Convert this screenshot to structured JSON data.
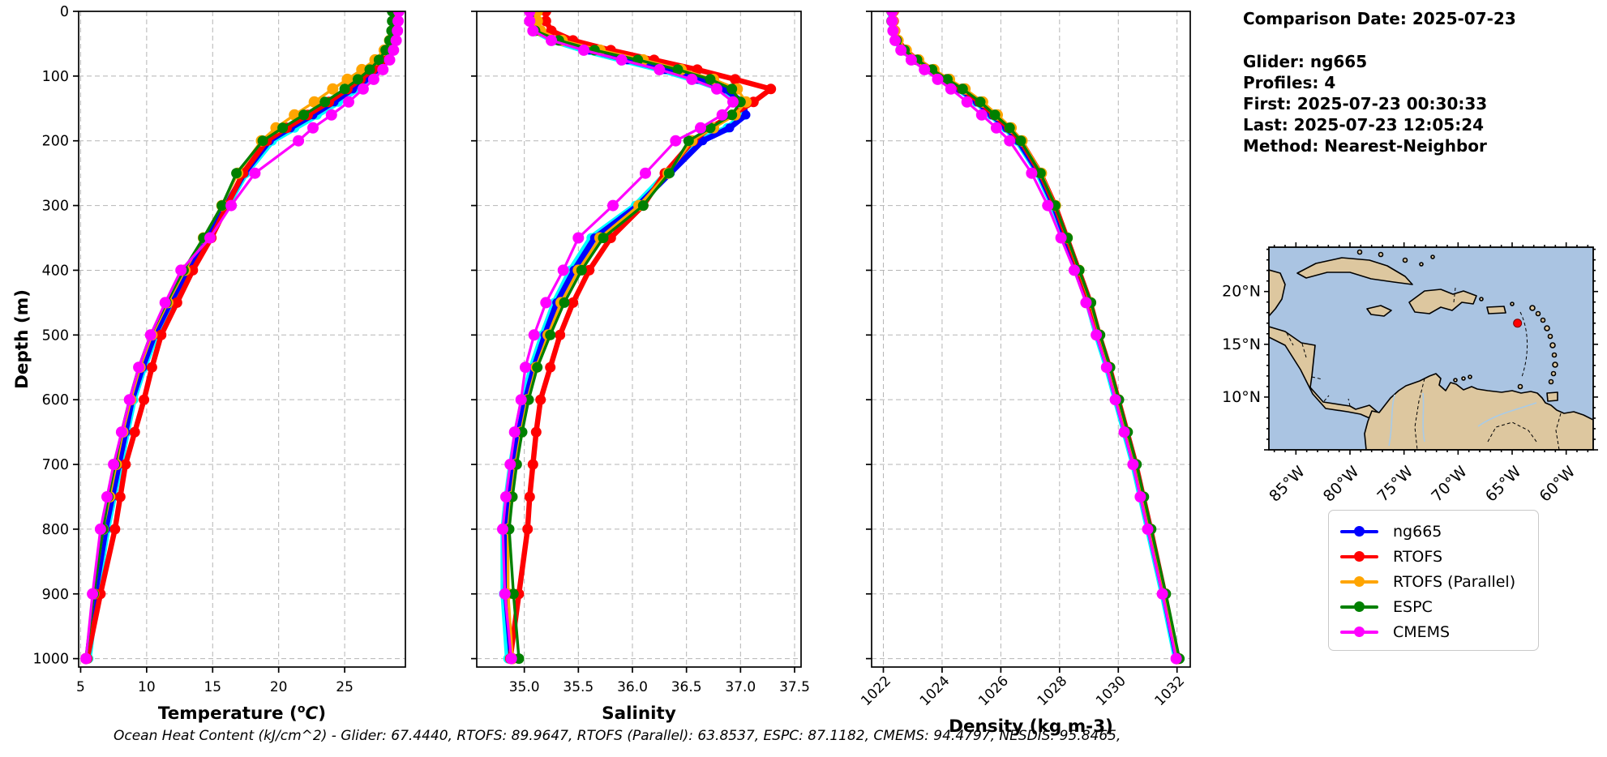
{
  "info_panel": {
    "comparison_date": "Comparison Date: 2025-07-23",
    "glider": "Glider: ng665",
    "profiles": "Profiles: 4",
    "first": "First: 2025-07-23 00:30:33",
    "last": "Last: 2025-07-23 12:05:24",
    "method": "Method: Nearest-Neighbor"
  },
  "legend": {
    "items": [
      {
        "label": "ng665",
        "color": "#0000ff"
      },
      {
        "label": "RTOFS",
        "color": "#ff0000"
      },
      {
        "label": "RTOFS (Parallel)",
        "color": "#ffa500"
      },
      {
        "label": "ESPC",
        "color": "#008000"
      },
      {
        "label": "CMEMS",
        "color": "#ff00ff"
      }
    ]
  },
  "footer": {
    "ohc_text": "Ocean Heat Content (kJ/cm^2) - Glider: 67.4440,  RTOFS: 89.9647,  RTOFS (Parallel): 63.8537,  ESPC: 87.1182,  CMEMS: 94.4797,  NESDIS: 95.8465,"
  },
  "depth_axis": {
    "label": "Depth (m)",
    "ticks": [
      0,
      100,
      200,
      300,
      400,
      500,
      600,
      700,
      800,
      900,
      1000
    ],
    "lim": [
      0,
      1013
    ]
  },
  "series_meta": [
    {
      "name": "glider-raw-profiles",
      "label": "",
      "color": "#00ffff",
      "width": 8,
      "marker_r": 6,
      "in_legend": false
    },
    {
      "name": "ng665",
      "label": "ng665",
      "color": "#0000ff",
      "width": 7,
      "marker_r": 5.5,
      "in_legend": true
    },
    {
      "name": "rtofs",
      "label": "RTOFS",
      "color": "#ff0000",
      "width": 6.5,
      "marker_r": 6.5,
      "in_legend": true
    },
    {
      "name": "rtofs-parallel",
      "label": "RTOFS (Parallel)",
      "color": "#ffa500",
      "width": 3.4,
      "marker_r": 7,
      "in_legend": true
    },
    {
      "name": "espc",
      "label": "ESPC",
      "color": "#008000",
      "width": 3.4,
      "marker_r": 6.5,
      "in_legend": true
    },
    {
      "name": "cmems",
      "label": "CMEMS",
      "color": "#ff00ff",
      "width": 3.2,
      "marker_r": 7,
      "in_legend": true
    }
  ],
  "chart_data": [
    {
      "type": "line",
      "name": "temperature-profile",
      "xlabel_parts": {
        "prefix": "Temperature (",
        "sup": "o",
        "italic": "C",
        "suffix": ")"
      },
      "xlim": [
        4.85,
        29.6
      ],
      "xticks": [
        5,
        10,
        15,
        20,
        25
      ],
      "xtick_labels": [
        "5",
        "10",
        "15",
        "20",
        "25"
      ],
      "rotate_xticklabels": false,
      "show_depth_labels": true,
      "depths": [
        0,
        15,
        30,
        45,
        60,
        75,
        90,
        105,
        120,
        140,
        160,
        180,
        200,
        250,
        300,
        350,
        400,
        450,
        500,
        550,
        600,
        650,
        700,
        750,
        800,
        900,
        1000
      ],
      "values": [
        [
          28.75,
          28.75,
          28.7,
          28.65,
          28.5,
          28.15,
          27.5,
          26.8,
          25.9,
          24.5,
          22.9,
          21.2,
          19.5,
          17.5,
          16.1,
          14.7,
          13.2,
          11.9,
          10.7,
          9.8,
          9.0,
          8.5,
          8.0,
          7.5,
          7.0,
          6.2,
          5.6
        ],
        [
          28.7,
          28.7,
          28.65,
          28.6,
          28.4,
          28.0,
          27.3,
          26.5,
          25.6,
          24.2,
          22.6,
          20.9,
          19.3,
          17.4,
          16.0,
          14.6,
          13.1,
          11.8,
          10.6,
          9.7,
          8.9,
          8.4,
          7.9,
          7.4,
          6.9,
          6.1,
          5.5
        ],
        [
          28.8,
          28.8,
          28.75,
          28.6,
          28.3,
          27.8,
          27.1,
          26.2,
          25.2,
          23.8,
          22.2,
          20.6,
          19.1,
          17.3,
          16.1,
          14.9,
          13.5,
          12.3,
          11.1,
          10.4,
          9.8,
          9.1,
          8.4,
          8.0,
          7.6,
          6.5,
          5.5
        ],
        [
          28.7,
          28.7,
          28.6,
          28.4,
          28.0,
          27.3,
          26.3,
          25.2,
          24.1,
          22.7,
          21.2,
          19.8,
          18.7,
          16.9,
          15.7,
          14.3,
          12.9,
          11.6,
          10.4,
          9.5,
          8.8,
          8.2,
          7.7,
          7.2,
          6.7,
          6.0,
          5.4
        ],
        [
          28.6,
          28.6,
          28.55,
          28.4,
          28.1,
          27.6,
          26.9,
          26.0,
          25.0,
          23.5,
          21.9,
          20.3,
          18.8,
          16.8,
          15.7,
          14.3,
          12.8,
          11.5,
          10.3,
          9.4,
          8.7,
          8.1,
          7.6,
          7.1,
          6.7,
          6.0,
          5.4
        ],
        [
          29.1,
          29.05,
          29.0,
          28.9,
          28.7,
          28.4,
          27.9,
          27.2,
          26.4,
          25.3,
          24.0,
          22.6,
          21.5,
          18.2,
          16.4,
          14.8,
          12.6,
          11.4,
          10.3,
          9.4,
          8.7,
          8.1,
          7.5,
          7.0,
          6.5,
          5.9,
          5.4
        ]
      ]
    },
    {
      "type": "line",
      "name": "salinity-profile",
      "xlabel_parts": {
        "prefix": "Salinity"
      },
      "xlim": [
        34.56,
        37.56
      ],
      "xticks": [
        35.0,
        35.5,
        36.0,
        36.5,
        37.0,
        37.5
      ],
      "xtick_labels": [
        "35.0",
        "35.5",
        "36.0",
        "36.5",
        "37.0",
        "37.5"
      ],
      "rotate_xticklabels": false,
      "show_depth_labels": false,
      "depths": [
        0,
        15,
        30,
        45,
        60,
        75,
        90,
        105,
        120,
        140,
        160,
        180,
        200,
        250,
        300,
        350,
        400,
        450,
        500,
        550,
        600,
        650,
        700,
        750,
        800,
        900,
        1000
      ],
      "values": [
        [
          35.08,
          35.08,
          35.1,
          35.27,
          35.56,
          35.91,
          36.27,
          36.57,
          36.83,
          37.0,
          37.04,
          36.88,
          36.62,
          36.32,
          36.03,
          35.62,
          35.43,
          35.28,
          35.17,
          35.07,
          34.99,
          34.93,
          34.88,
          34.84,
          34.81,
          34.81,
          34.85
        ],
        [
          35.1,
          35.1,
          35.12,
          35.3,
          35.6,
          35.95,
          36.3,
          36.6,
          36.85,
          37.02,
          37.05,
          36.9,
          36.65,
          36.35,
          36.05,
          35.65,
          35.46,
          35.3,
          35.19,
          35.09,
          35.01,
          34.95,
          34.9,
          34.86,
          34.83,
          34.83,
          34.88
        ],
        [
          35.2,
          35.2,
          35.25,
          35.45,
          35.8,
          36.2,
          36.6,
          36.95,
          37.28,
          37.12,
          36.92,
          36.72,
          36.56,
          36.3,
          36.1,
          35.8,
          35.6,
          35.45,
          35.33,
          35.24,
          35.15,
          35.11,
          35.08,
          35.05,
          35.03,
          34.95,
          34.87
        ],
        [
          35.12,
          35.12,
          35.15,
          35.35,
          35.7,
          36.1,
          36.45,
          36.75,
          36.97,
          37.05,
          36.95,
          36.75,
          36.55,
          36.33,
          36.06,
          35.7,
          35.5,
          35.34,
          35.22,
          35.11,
          35.03,
          34.97,
          34.92,
          34.88,
          34.85,
          34.85,
          34.89
        ],
        [
          35.05,
          35.05,
          35.1,
          35.32,
          35.65,
          36.05,
          36.42,
          36.72,
          36.92,
          37.0,
          36.92,
          36.72,
          36.52,
          36.34,
          36.1,
          35.73,
          35.53,
          35.37,
          35.24,
          35.12,
          35.04,
          34.98,
          34.93,
          34.89,
          34.86,
          34.9,
          34.95
        ],
        [
          35.05,
          35.05,
          35.08,
          35.25,
          35.55,
          35.9,
          36.25,
          36.55,
          36.78,
          36.93,
          36.83,
          36.63,
          36.4,
          36.12,
          35.82,
          35.5,
          35.36,
          35.2,
          35.09,
          35.01,
          34.97,
          34.91,
          34.87,
          34.83,
          34.8,
          34.82,
          34.88
        ]
      ]
    },
    {
      "type": "line",
      "name": "density-profile",
      "xlabel_parts": {
        "prefix": "Density (kg m-3)"
      },
      "xlim": [
        1021.6,
        1032.45
      ],
      "xticks": [
        1022,
        1024,
        1026,
        1028,
        1030,
        1032
      ],
      "xtick_labels": [
        "1022",
        "1024",
        "1026",
        "1028",
        "1030",
        "1032"
      ],
      "rotate_xticklabels": true,
      "show_depth_labels": false,
      "depths": [
        0,
        15,
        30,
        45,
        60,
        75,
        90,
        105,
        120,
        140,
        160,
        180,
        200,
        250,
        300,
        350,
        400,
        450,
        500,
        550,
        600,
        650,
        700,
        750,
        800,
        900,
        1000
      ],
      "values": [
        [
          1022.27,
          1022.27,
          1022.32,
          1022.42,
          1022.67,
          1023.07,
          1023.57,
          1024.07,
          1024.57,
          1025.17,
          1025.67,
          1026.17,
          1026.57,
          1027.27,
          1027.77,
          1028.17,
          1028.57,
          1028.97,
          1029.27,
          1029.62,
          1029.92,
          1030.22,
          1030.52,
          1030.77,
          1031.02,
          1031.52,
          1031.97
        ],
        [
          1022.3,
          1022.3,
          1022.35,
          1022.45,
          1022.7,
          1023.1,
          1023.6,
          1024.1,
          1024.6,
          1025.2,
          1025.7,
          1026.2,
          1026.6,
          1027.3,
          1027.8,
          1028.2,
          1028.6,
          1029.0,
          1029.3,
          1029.65,
          1029.95,
          1030.25,
          1030.55,
          1030.8,
          1031.05,
          1031.55,
          1032.0
        ],
        [
          1022.35,
          1022.35,
          1022.4,
          1022.5,
          1022.75,
          1023.15,
          1023.65,
          1024.15,
          1024.68,
          1025.28,
          1025.78,
          1026.28,
          1026.68,
          1027.35,
          1027.85,
          1028.25,
          1028.65,
          1029.05,
          1029.35,
          1029.7,
          1030.0,
          1030.3,
          1030.6,
          1030.85,
          1031.1,
          1031.58,
          1032.02
        ],
        [
          1022.32,
          1022.32,
          1022.38,
          1022.5,
          1022.78,
          1023.2,
          1023.72,
          1024.25,
          1024.78,
          1025.38,
          1025.88,
          1026.35,
          1026.72,
          1027.38,
          1027.86,
          1028.26,
          1028.66,
          1029.05,
          1029.36,
          1029.7,
          1030.0,
          1030.3,
          1030.6,
          1030.85,
          1031.1,
          1031.6,
          1032.05
        ],
        [
          1022.28,
          1022.28,
          1022.33,
          1022.45,
          1022.72,
          1023.15,
          1023.66,
          1024.18,
          1024.7,
          1025.3,
          1025.8,
          1026.3,
          1026.68,
          1027.35,
          1027.85,
          1028.27,
          1028.67,
          1029.07,
          1029.38,
          1029.72,
          1030.02,
          1030.32,
          1030.62,
          1030.87,
          1031.12,
          1031.62,
          1032.08
        ],
        [
          1022.3,
          1022.3,
          1022.33,
          1022.4,
          1022.6,
          1022.95,
          1023.4,
          1023.85,
          1024.3,
          1024.85,
          1025.35,
          1025.85,
          1026.3,
          1027.05,
          1027.6,
          1028.05,
          1028.5,
          1028.9,
          1029.25,
          1029.6,
          1029.9,
          1030.2,
          1030.5,
          1030.75,
          1031.0,
          1031.5,
          1031.97
        ]
      ]
    }
  ],
  "map": {
    "extent": {
      "lon_min": -87.5,
      "lon_max": -57.5,
      "lat_min": 5.0,
      "lat_max": 24.2
    },
    "lon_ticks": [
      {
        "lon": -85,
        "label": "85°W"
      },
      {
        "lon": -80,
        "label": "80°W"
      },
      {
        "lon": -75,
        "label": "75°W"
      },
      {
        "lon": -70,
        "label": "70°W"
      },
      {
        "lon": -65,
        "label": "65°W"
      },
      {
        "lon": -60,
        "label": "60°W"
      }
    ],
    "lat_ticks": [
      {
        "lat": 20,
        "label": "20°N"
      },
      {
        "lat": 15,
        "label": "15°N"
      },
      {
        "lat": 10,
        "label": "10°N"
      }
    ],
    "marker": {
      "lon": -64.5,
      "lat": 17.0,
      "color": "#ff0000"
    },
    "ocean_color": "#aac4e2",
    "land_color": "#ddc79f",
    "river_color": "#a8cbe8"
  }
}
